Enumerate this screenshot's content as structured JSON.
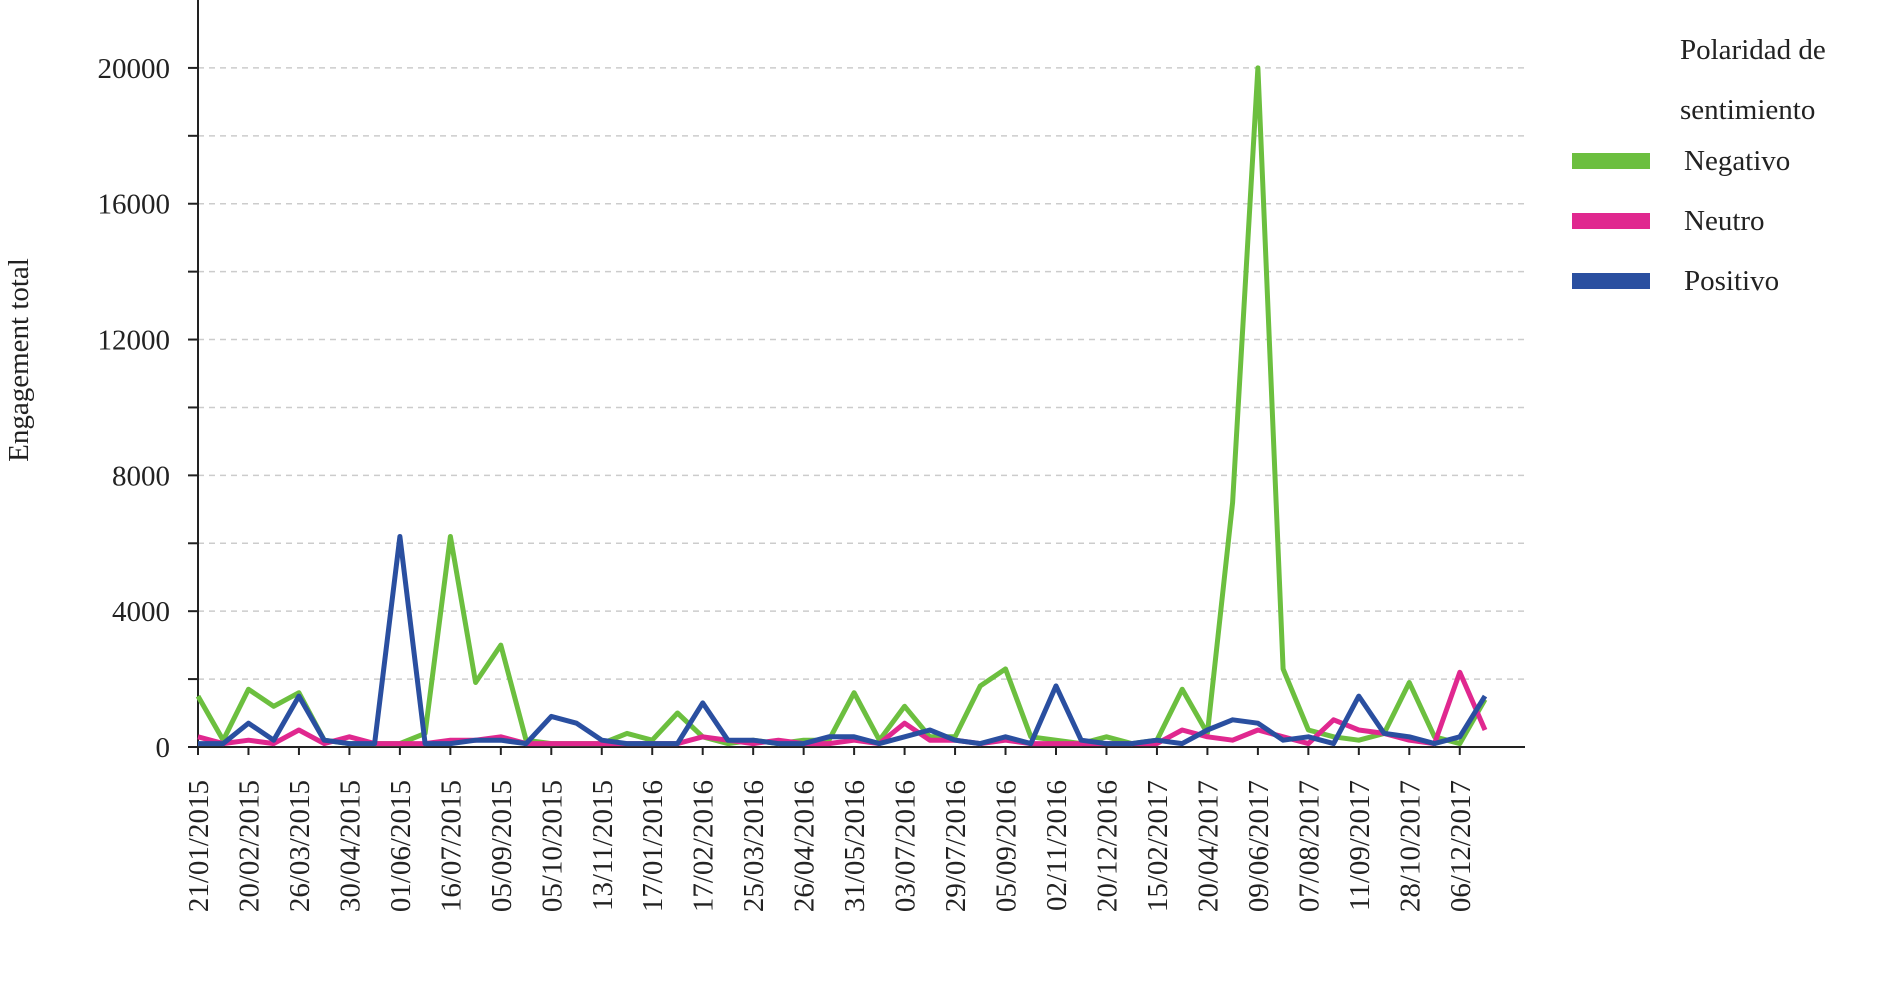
{
  "chart_data": {
    "type": "line",
    "y_label": "Engagement total",
    "legend_title": "Polaridad de sentimiento",
    "categories": [
      "21/01/2015",
      null,
      "20/02/2015",
      null,
      "26/03/2015",
      null,
      "30/04/2015",
      null,
      "01/06/2015",
      null,
      "16/07/2015",
      null,
      "05/09/2015",
      null,
      "05/10/2015",
      null,
      "13/11/2015",
      null,
      "17/01/2016",
      null,
      "17/02/2016",
      null,
      "25/03/2016",
      null,
      "26/04/2016",
      null,
      "31/05/2016",
      null,
      "03/07/2016",
      null,
      "29/07/2016",
      null,
      "05/09/2016",
      null,
      "02/11/2016",
      null,
      "20/12/2016",
      null,
      "15/02/2017",
      null,
      "20/04/2017",
      null,
      "09/06/2017",
      null,
      "07/08/2017",
      null,
      "11/09/2017",
      null,
      "28/10/2017",
      null,
      "06/12/2017",
      null
    ],
    "series": [
      {
        "name": "Negativo",
        "color": "#6cbf3f",
        "values": [
          1500,
          200,
          1700,
          1200,
          1600,
          200,
          100,
          100,
          100,
          400,
          6200,
          1900,
          3000,
          200,
          100,
          100,
          100,
          400,
          200,
          1000,
          300,
          100,
          200,
          100,
          200,
          200,
          1600,
          200,
          1200,
          300,
          300,
          1800,
          2300,
          300,
          200,
          100,
          300,
          100,
          200,
          1700,
          400,
          7200,
          20000,
          2300,
          500,
          300,
          200,
          400,
          1900,
          300,
          100,
          1400
        ]
      },
      {
        "name": "Neutro",
        "color": "#e0288f",
        "values": [
          300,
          100,
          200,
          100,
          500,
          100,
          300,
          100,
          100,
          100,
          200,
          200,
          300,
          100,
          100,
          100,
          100,
          100,
          100,
          100,
          300,
          200,
          100,
          200,
          100,
          100,
          200,
          100,
          700,
          200,
          200,
          100,
          200,
          100,
          100,
          100,
          100,
          100,
          100,
          500,
          300,
          200,
          500,
          300,
          100,
          800,
          500,
          400,
          200,
          100,
          2200,
          500
        ]
      },
      {
        "name": "Positivo",
        "color": "#2a4fa0",
        "values": [
          100,
          100,
          700,
          200,
          1500,
          200,
          100,
          100,
          6200,
          100,
          100,
          200,
          200,
          100,
          900,
          700,
          200,
          100,
          100,
          100,
          1300,
          200,
          200,
          100,
          100,
          300,
          300,
          100,
          300,
          500,
          200,
          100,
          300,
          100,
          1800,
          200,
          100,
          100,
          200,
          100,
          500,
          800,
          700,
          200,
          300,
          100,
          1500,
          400,
          300,
          100,
          300,
          1500
        ]
      }
    ],
    "ylim": [
      0,
      22000
    ],
    "yticks": [
      0,
      4000,
      8000,
      12000,
      16000,
      20000
    ],
    "yticks_minor": [
      2000,
      6000,
      10000,
      14000,
      18000
    ],
    "grid": true
  }
}
